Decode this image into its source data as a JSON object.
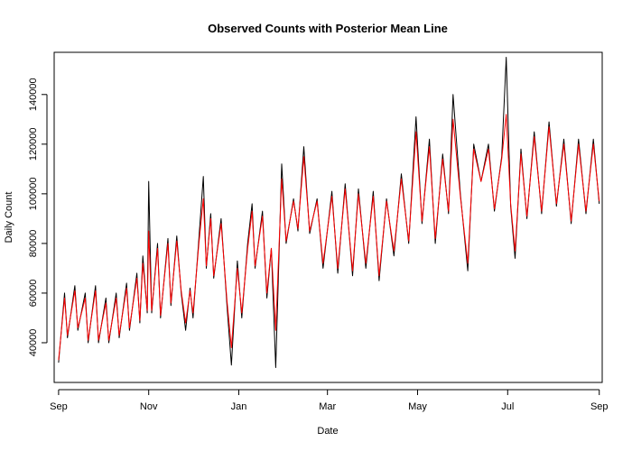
{
  "chart_data": {
    "type": "line",
    "title": "Observed Counts with Posterior Mean Line",
    "xlabel": "Date",
    "ylabel": "Daily Count",
    "x_range": [
      "2023-09-01",
      "2024-09-01"
    ],
    "xlim": [
      "2023-08-29",
      "2024-09-03"
    ],
    "ylim": [
      24000,
      157000
    ],
    "x_ticks": [
      {
        "label": "Sep",
        "date": "2023-09-01"
      },
      {
        "label": "Nov",
        "date": "2023-11-01"
      },
      {
        "label": "Jan",
        "date": "2024-01-01"
      },
      {
        "label": "Mar",
        "date": "2024-03-01"
      },
      {
        "label": "May",
        "date": "2024-05-01"
      },
      {
        "label": "Jul",
        "date": "2024-07-01"
      },
      {
        "label": "Sep",
        "date": "2024-09-01"
      }
    ],
    "y_ticks": [
      {
        "label": "40000",
        "value": 40000
      },
      {
        "label": "60000",
        "value": 60000
      },
      {
        "label": "80000",
        "value": 80000
      },
      {
        "label": "100000",
        "value": 100000
      },
      {
        "label": "120000",
        "value": 120000
      },
      {
        "label": "140000",
        "value": 140000
      }
    ],
    "grid": false,
    "legend": "none",
    "series": [
      {
        "color": "#000000",
        "points": [
          [
            "2023-09-01",
            32000
          ],
          [
            "2023-09-05",
            60000
          ],
          [
            "2023-09-07",
            42000
          ],
          [
            "2023-09-12",
            63000
          ],
          [
            "2023-09-14",
            45000
          ],
          [
            "2023-09-19",
            60000
          ],
          [
            "2023-09-21",
            40000
          ],
          [
            "2023-09-26",
            63000
          ],
          [
            "2023-09-28",
            40000
          ],
          [
            "2023-10-03",
            58000
          ],
          [
            "2023-10-05",
            40000
          ],
          [
            "2023-10-10",
            60000
          ],
          [
            "2023-10-12",
            42000
          ],
          [
            "2023-10-17",
            64000
          ],
          [
            "2023-10-19",
            45000
          ],
          [
            "2023-10-24",
            68000
          ],
          [
            "2023-10-26",
            48000
          ],
          [
            "2023-10-28",
            75000
          ],
          [
            "2023-10-31",
            52000
          ],
          [
            "2023-11-01",
            105000
          ],
          [
            "2023-11-03",
            52000
          ],
          [
            "2023-11-07",
            80000
          ],
          [
            "2023-11-09",
            50000
          ],
          [
            "2023-11-14",
            82000
          ],
          [
            "2023-11-16",
            55000
          ],
          [
            "2023-11-20",
            83000
          ],
          [
            "2023-11-23",
            60000
          ],
          [
            "2023-11-26",
            45000
          ],
          [
            "2023-11-29",
            62000
          ],
          [
            "2023-12-01",
            50000
          ],
          [
            "2023-12-05",
            82000
          ],
          [
            "2023-12-08",
            107000
          ],
          [
            "2023-12-10",
            70000
          ],
          [
            "2023-12-13",
            92000
          ],
          [
            "2023-12-15",
            66000
          ],
          [
            "2023-12-20",
            90000
          ],
          [
            "2023-12-24",
            55000
          ],
          [
            "2023-12-27",
            31000
          ],
          [
            "2023-12-31",
            73000
          ],
          [
            "2024-01-03",
            50000
          ],
          [
            "2024-01-07",
            80000
          ],
          [
            "2024-01-10",
            96000
          ],
          [
            "2024-01-12",
            70000
          ],
          [
            "2024-01-17",
            93000
          ],
          [
            "2024-01-20",
            58000
          ],
          [
            "2024-01-23",
            78000
          ],
          [
            "2024-01-26",
            30000
          ],
          [
            "2024-01-30",
            112000
          ],
          [
            "2024-02-02",
            80000
          ],
          [
            "2024-02-07",
            98000
          ],
          [
            "2024-02-10",
            85000
          ],
          [
            "2024-02-14",
            119000
          ],
          [
            "2024-02-18",
            84000
          ],
          [
            "2024-02-23",
            98000
          ],
          [
            "2024-02-27",
            70000
          ],
          [
            "2024-03-04",
            101000
          ],
          [
            "2024-03-08",
            68000
          ],
          [
            "2024-03-13",
            104000
          ],
          [
            "2024-03-18",
            67000
          ],
          [
            "2024-03-22",
            102000
          ],
          [
            "2024-03-27",
            70000
          ],
          [
            "2024-04-01",
            101000
          ],
          [
            "2024-04-05",
            65000
          ],
          [
            "2024-04-10",
            98000
          ],
          [
            "2024-04-15",
            75000
          ],
          [
            "2024-04-20",
            108000
          ],
          [
            "2024-04-25",
            80000
          ],
          [
            "2024-04-30",
            131000
          ],
          [
            "2024-05-04",
            88000
          ],
          [
            "2024-05-09",
            122000
          ],
          [
            "2024-05-13",
            80000
          ],
          [
            "2024-05-18",
            116000
          ],
          [
            "2024-05-22",
            92000
          ],
          [
            "2024-05-25",
            140000
          ],
          [
            "2024-05-30",
            100000
          ],
          [
            "2024-06-04",
            69000
          ],
          [
            "2024-06-08",
            120000
          ],
          [
            "2024-06-13",
            105000
          ],
          [
            "2024-06-18",
            120000
          ],
          [
            "2024-06-22",
            93000
          ],
          [
            "2024-06-27",
            115000
          ],
          [
            "2024-06-30",
            155000
          ],
          [
            "2024-07-03",
            95000
          ],
          [
            "2024-07-06",
            74000
          ],
          [
            "2024-07-10",
            118000
          ],
          [
            "2024-07-14",
            90000
          ],
          [
            "2024-07-19",
            125000
          ],
          [
            "2024-07-24",
            92000
          ],
          [
            "2024-07-29",
            129000
          ],
          [
            "2024-08-03",
            95000
          ],
          [
            "2024-08-08",
            122000
          ],
          [
            "2024-08-13",
            88000
          ],
          [
            "2024-08-18",
            122000
          ],
          [
            "2024-08-23",
            92000
          ],
          [
            "2024-08-28",
            122000
          ],
          [
            "2024-09-01",
            96000
          ]
        ]
      },
      {
        "color": "#ff0000",
        "points": [
          [
            "2023-09-01",
            33000
          ],
          [
            "2023-09-05",
            58000
          ],
          [
            "2023-09-07",
            43000
          ],
          [
            "2023-09-12",
            61000
          ],
          [
            "2023-09-14",
            46000
          ],
          [
            "2023-09-19",
            58000
          ],
          [
            "2023-09-21",
            41000
          ],
          [
            "2023-09-26",
            61000
          ],
          [
            "2023-09-28",
            41000
          ],
          [
            "2023-10-03",
            56000
          ],
          [
            "2023-10-05",
            41000
          ],
          [
            "2023-10-10",
            58000
          ],
          [
            "2023-10-12",
            43000
          ],
          [
            "2023-10-17",
            62000
          ],
          [
            "2023-10-19",
            46000
          ],
          [
            "2023-10-24",
            66000
          ],
          [
            "2023-10-26",
            49000
          ],
          [
            "2023-10-28",
            72000
          ],
          [
            "2023-10-31",
            53000
          ],
          [
            "2023-11-01",
            85000
          ],
          [
            "2023-11-03",
            53000
          ],
          [
            "2023-11-07",
            78000
          ],
          [
            "2023-11-09",
            51000
          ],
          [
            "2023-11-14",
            80000
          ],
          [
            "2023-11-16",
            56000
          ],
          [
            "2023-11-20",
            81000
          ],
          [
            "2023-11-23",
            61000
          ],
          [
            "2023-11-26",
            48000
          ],
          [
            "2023-11-29",
            61000
          ],
          [
            "2023-12-01",
            52000
          ],
          [
            "2023-12-05",
            80000
          ],
          [
            "2023-12-08",
            98000
          ],
          [
            "2023-12-10",
            71000
          ],
          [
            "2023-12-13",
            90000
          ],
          [
            "2023-12-15",
            67000
          ],
          [
            "2023-12-20",
            88000
          ],
          [
            "2023-12-24",
            57000
          ],
          [
            "2023-12-27",
            38000
          ],
          [
            "2023-12-31",
            70000
          ],
          [
            "2024-01-03",
            52000
          ],
          [
            "2024-01-07",
            78000
          ],
          [
            "2024-01-10",
            93000
          ],
          [
            "2024-01-12",
            71000
          ],
          [
            "2024-01-17",
            91000
          ],
          [
            "2024-01-20",
            60000
          ],
          [
            "2024-01-23",
            78000
          ],
          [
            "2024-01-26",
            45000
          ],
          [
            "2024-01-30",
            106000
          ],
          [
            "2024-02-02",
            81000
          ],
          [
            "2024-02-07",
            97000
          ],
          [
            "2024-02-10",
            86000
          ],
          [
            "2024-02-14",
            115000
          ],
          [
            "2024-02-18",
            85000
          ],
          [
            "2024-02-23",
            97000
          ],
          [
            "2024-02-27",
            72000
          ],
          [
            "2024-03-04",
            99000
          ],
          [
            "2024-03-08",
            70000
          ],
          [
            "2024-03-13",
            102000
          ],
          [
            "2024-03-18",
            69000
          ],
          [
            "2024-03-22",
            100000
          ],
          [
            "2024-03-27",
            72000
          ],
          [
            "2024-04-01",
            99000
          ],
          [
            "2024-04-05",
            67000
          ],
          [
            "2024-04-10",
            97000
          ],
          [
            "2024-04-15",
            77000
          ],
          [
            "2024-04-20",
            106000
          ],
          [
            "2024-04-25",
            81000
          ],
          [
            "2024-04-30",
            125000
          ],
          [
            "2024-05-04",
            89000
          ],
          [
            "2024-05-09",
            119000
          ],
          [
            "2024-05-13",
            82000
          ],
          [
            "2024-05-18",
            114000
          ],
          [
            "2024-05-22",
            93000
          ],
          [
            "2024-05-25",
            130000
          ],
          [
            "2024-05-30",
            99000
          ],
          [
            "2024-06-04",
            72000
          ],
          [
            "2024-06-08",
            118000
          ],
          [
            "2024-06-13",
            105000
          ],
          [
            "2024-06-18",
            118000
          ],
          [
            "2024-06-22",
            94000
          ],
          [
            "2024-06-27",
            114000
          ],
          [
            "2024-06-30",
            132000
          ],
          [
            "2024-07-03",
            96000
          ],
          [
            "2024-07-06",
            77000
          ],
          [
            "2024-07-10",
            116000
          ],
          [
            "2024-07-14",
            91000
          ],
          [
            "2024-07-19",
            123000
          ],
          [
            "2024-07-24",
            93000
          ],
          [
            "2024-07-29",
            127000
          ],
          [
            "2024-08-03",
            96000
          ],
          [
            "2024-08-08",
            120000
          ],
          [
            "2024-08-13",
            89000
          ],
          [
            "2024-08-18",
            120000
          ],
          [
            "2024-08-23",
            93000
          ],
          [
            "2024-08-28",
            120000
          ],
          [
            "2024-09-01",
            97000
          ]
        ]
      }
    ]
  }
}
